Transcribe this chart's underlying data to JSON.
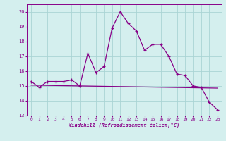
{
  "xlabel": "Windchill (Refroidissement éolien,°C)",
  "background_color": "#d4efee",
  "line_color": "#880088",
  "grid_color": "#aad4d4",
  "x_data": [
    0,
    1,
    2,
    3,
    4,
    5,
    6,
    7,
    8,
    9,
    10,
    11,
    12,
    13,
    14,
    15,
    16,
    17,
    18,
    19,
    20,
    21,
    22,
    23
  ],
  "y_data": [
    15.3,
    14.9,
    15.3,
    15.3,
    15.3,
    15.4,
    15.0,
    17.2,
    15.9,
    16.3,
    18.9,
    20.0,
    19.2,
    18.7,
    17.4,
    17.8,
    17.8,
    17.0,
    15.8,
    15.7,
    15.0,
    14.9,
    13.9,
    13.4
  ],
  "trend_x": [
    0,
    23
  ],
  "trend_y": [
    15.05,
    14.85
  ],
  "ylim": [
    13,
    20.5
  ],
  "xlim": [
    -0.5,
    23.5
  ],
  "ytick_values": [
    13,
    14,
    15,
    16,
    17,
    18,
    19,
    20
  ],
  "xtick_labels": [
    "0",
    "1",
    "2",
    "3",
    "4",
    "5",
    "6",
    "7",
    "8",
    "9",
    "10",
    "11",
    "12",
    "13",
    "14",
    "15",
    "16",
    "17",
    "18",
    "19",
    "20",
    "21",
    "22",
    "23"
  ]
}
